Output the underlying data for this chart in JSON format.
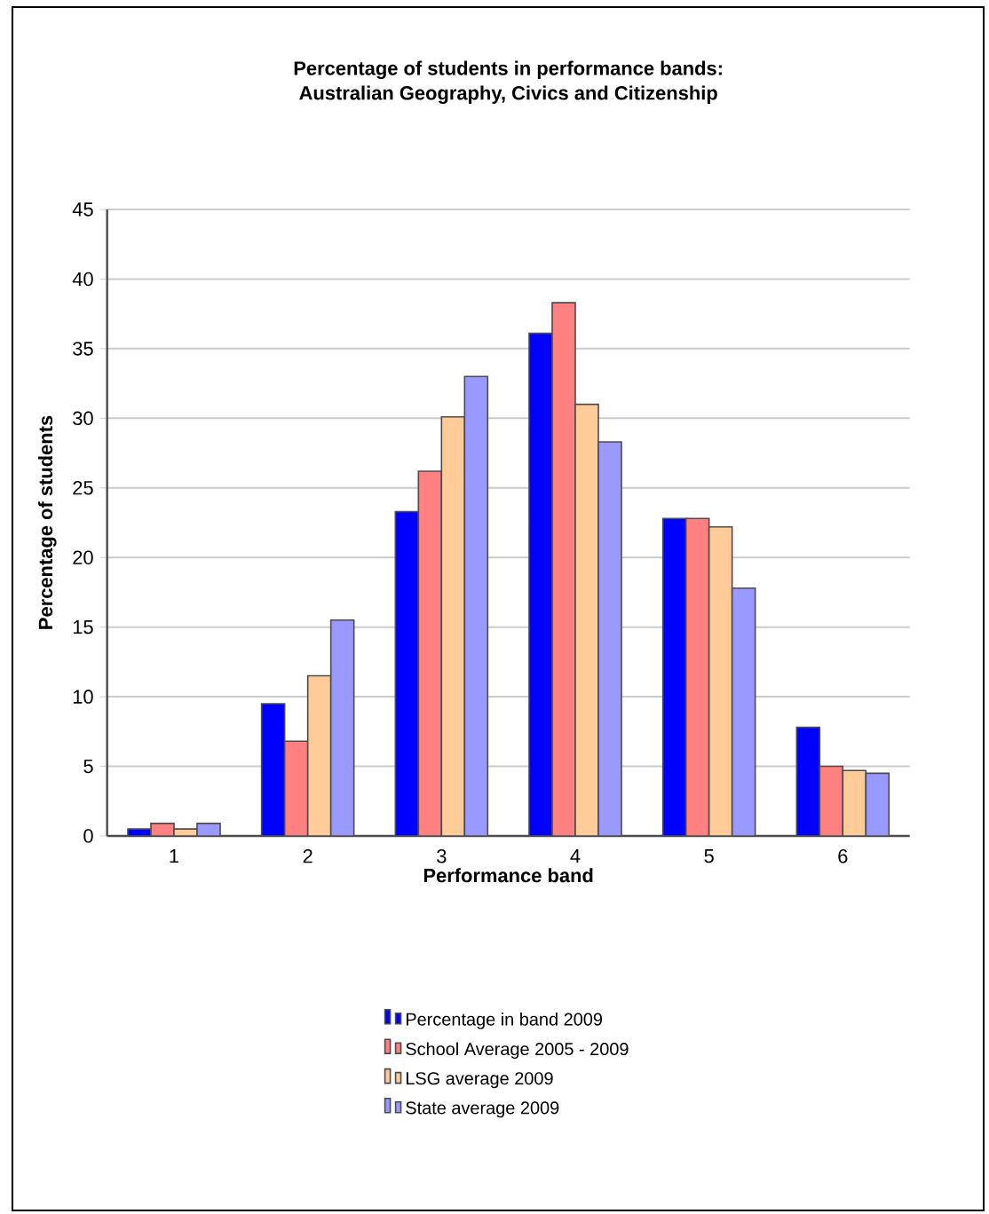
{
  "chart_data": {
    "type": "bar",
    "title": "Percentage of students in performance bands:\nAustralian Geography, Civics and Citizenship",
    "xlabel": "Performance band",
    "ylabel": "Percentage of students",
    "categories": [
      "1",
      "2",
      "3",
      "4",
      "5",
      "6"
    ],
    "series": [
      {
        "name": "Percentage in band 2009",
        "color": "#0000ff",
        "values": [
          0.5,
          9.5,
          23.3,
          36.1,
          22.8,
          7.8
        ]
      },
      {
        "name": "School Average 2005 - 2009",
        "color": "#ff8080",
        "values": [
          0.9,
          6.8,
          26.2,
          38.3,
          22.8,
          5.0
        ]
      },
      {
        "name": "LSG average 2009",
        "color": "#ffcc99",
        "values": [
          0.5,
          11.5,
          30.1,
          31.0,
          22.2,
          4.7
        ]
      },
      {
        "name": "State average 2009",
        "color": "#9999ff",
        "values": [
          0.9,
          15.5,
          33.0,
          28.3,
          17.8,
          4.5
        ]
      }
    ],
    "ylim": [
      0,
      45
    ],
    "yticks": [
      0,
      5,
      10,
      15,
      20,
      25,
      30,
      35,
      40,
      45
    ],
    "grid": "y",
    "legend": "bottom"
  }
}
